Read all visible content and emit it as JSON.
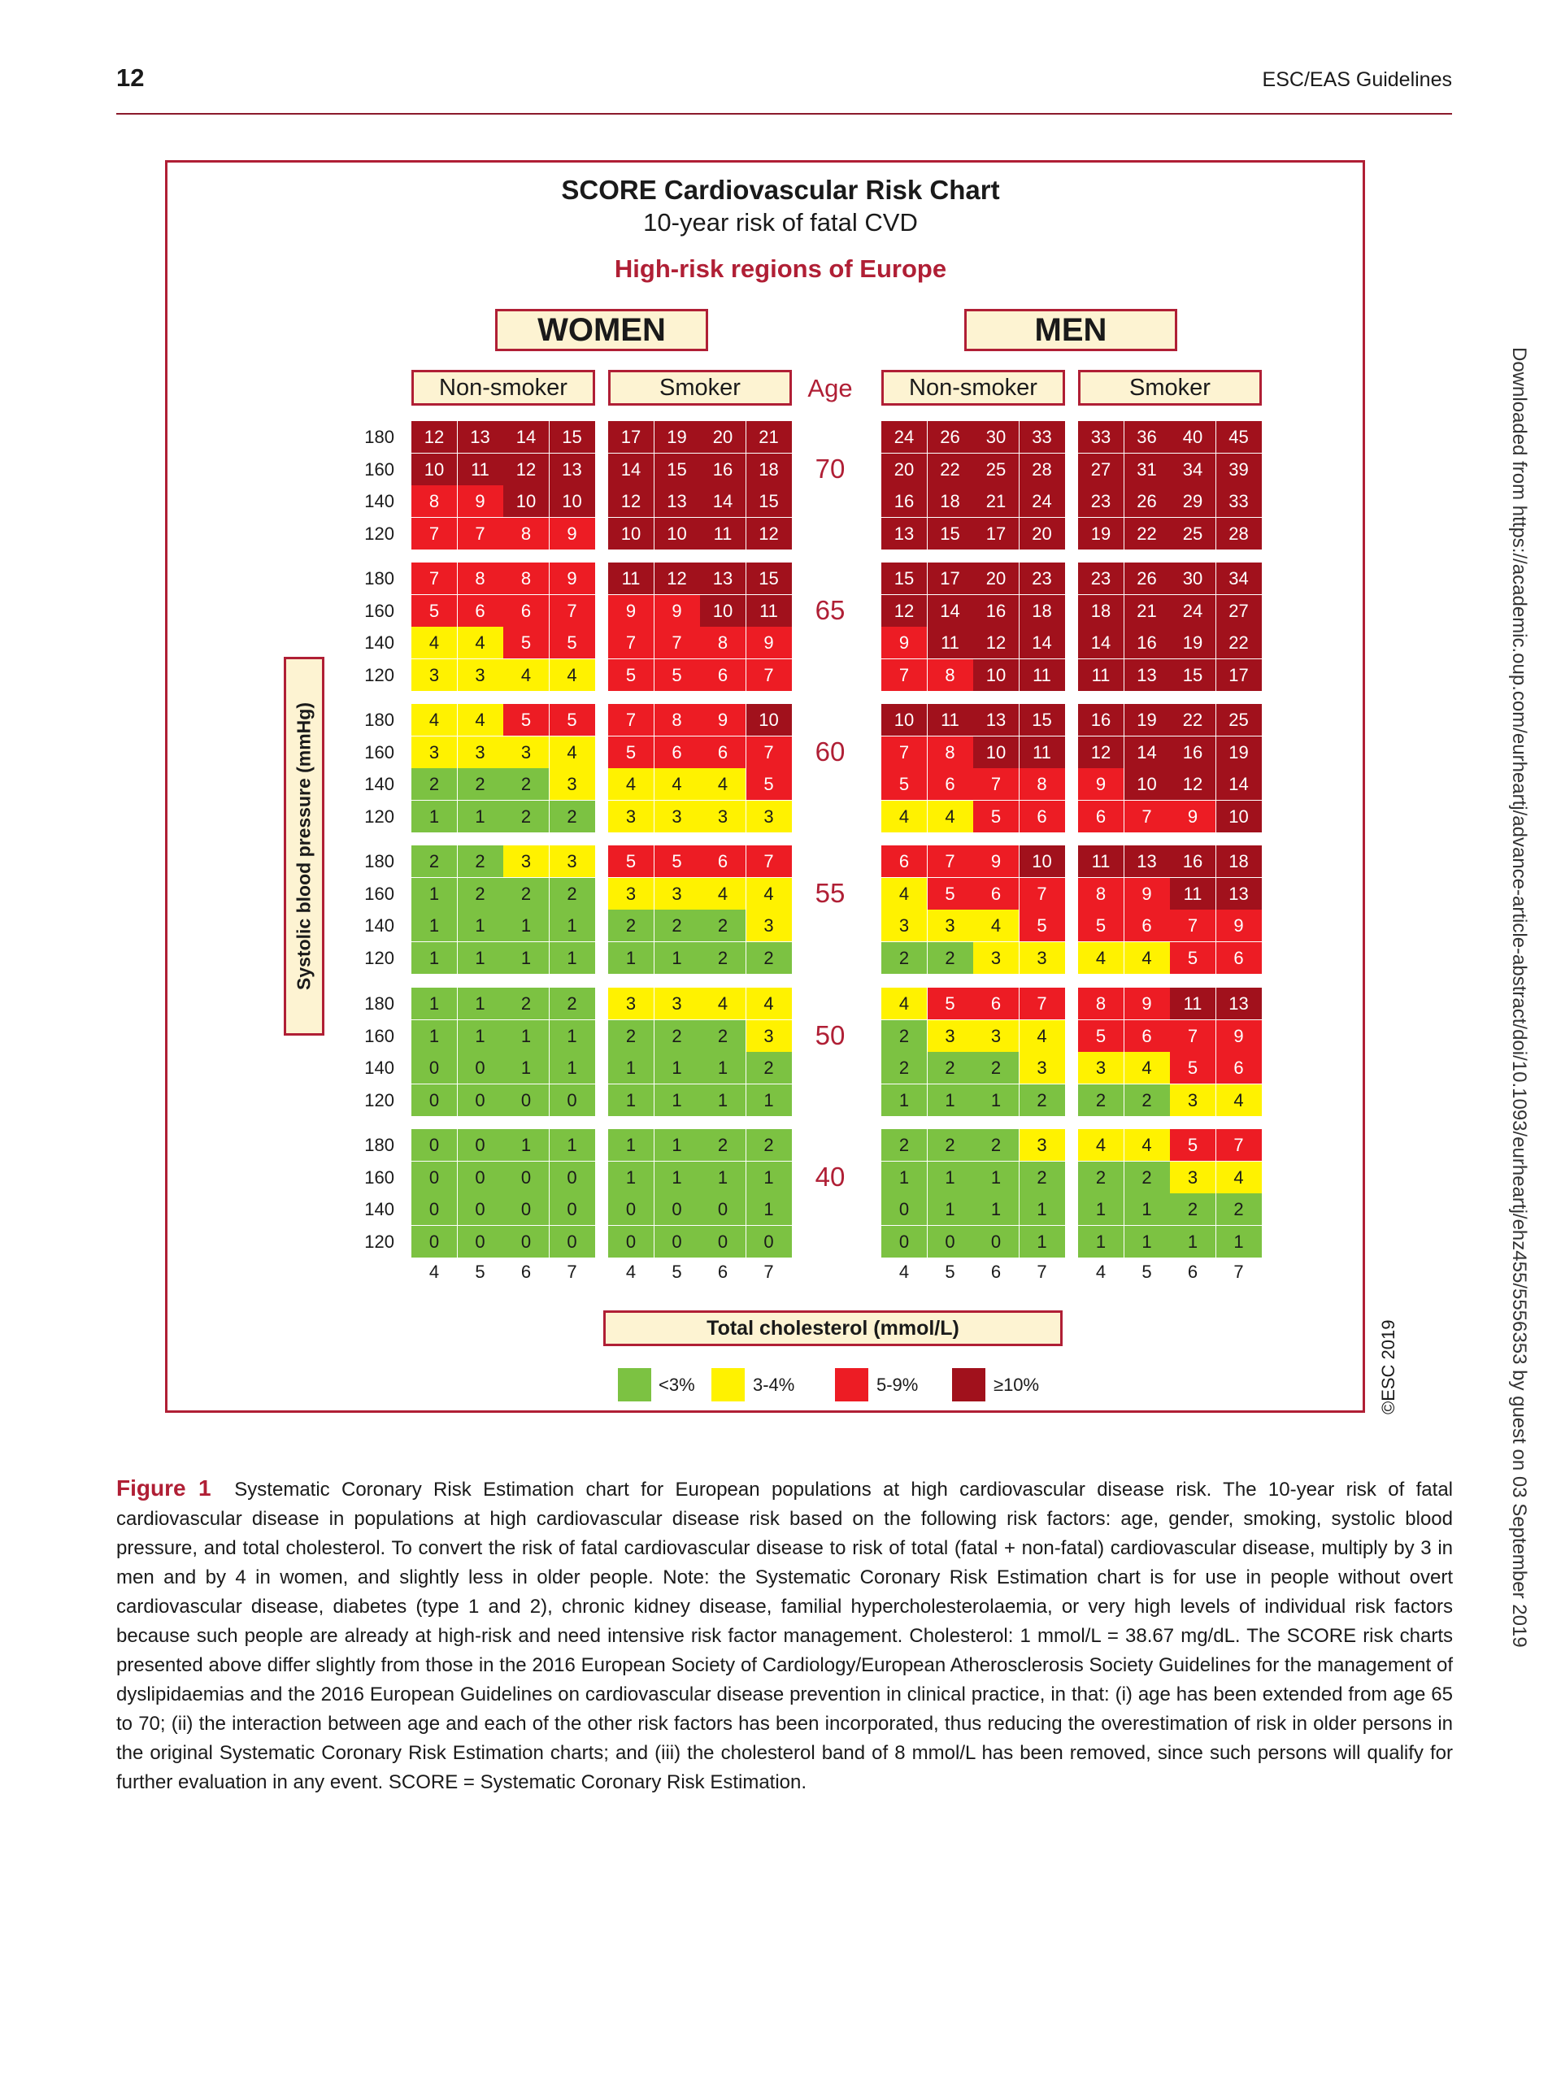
{
  "header": {
    "page_number": "12",
    "running_head": "ESC/EAS Guidelines"
  },
  "side_note": "Downloaded from https://academic.oup.com/eurheartj/advance-article-abstract/doi/10.1093/eurheartj/ehz455/5556353 by guest on 03 September 2019",
  "figure": {
    "title": "SCORE Cardiovascular Risk Chart",
    "subtitle": "10-year risk of fatal CVD",
    "region": "High-risk regions of Europe",
    "women_label": "WOMEN",
    "men_label": "MEN",
    "non_smoker_label": "Non-smoker",
    "smoker_label": "Smoker",
    "age_header": "Age",
    "y_axis_label": "Systolic blood pressure (mmHg)",
    "x_axis_label": "Total cholesterol (mmol/L)",
    "copyright": "©ESC 2019",
    "legend": [
      {
        "label": "<3%",
        "color": "#7cc242"
      },
      {
        "label": "3-4%",
        "color": "#fff200"
      },
      {
        "label": "5-9%",
        "color": "#ed1c24"
      },
      {
        "label": "≥10%",
        "color": "#a1111c"
      }
    ]
  },
  "chart_data": {
    "type": "heatmap",
    "title": "SCORE Cardiovascular Risk Chart",
    "subtitle": "10-year risk of fatal CVD",
    "xlabel": "Total cholesterol (mmol/L)",
    "ylabel": "Systolic blood pressure (mmHg)",
    "cholesterol": [
      "4",
      "5",
      "6",
      "7"
    ],
    "sbp": [
      "180",
      "160",
      "140",
      "120"
    ],
    "ages": [
      "70",
      "65",
      "60",
      "55",
      "50",
      "40"
    ],
    "categories": [
      {
        "key": "women_non_smoker"
      },
      {
        "key": "women_smoker"
      },
      {
        "key": "men_non_smoker"
      },
      {
        "key": "men_smoker"
      }
    ],
    "values": {
      "women_non_smoker": [
        [
          [
            12,
            13,
            14,
            15
          ],
          [
            10,
            11,
            12,
            13
          ],
          [
            8,
            9,
            10,
            10
          ],
          [
            7,
            7,
            8,
            9
          ]
        ],
        [
          [
            7,
            8,
            8,
            9
          ],
          [
            5,
            6,
            6,
            7
          ],
          [
            4,
            4,
            5,
            5
          ],
          [
            3,
            3,
            4,
            4
          ]
        ],
        [
          [
            4,
            4,
            5,
            5
          ],
          [
            3,
            3,
            3,
            4
          ],
          [
            2,
            2,
            2,
            3
          ],
          [
            1,
            1,
            2,
            2
          ]
        ],
        [
          [
            2,
            2,
            3,
            3
          ],
          [
            1,
            2,
            2,
            2
          ],
          [
            1,
            1,
            1,
            1
          ],
          [
            1,
            1,
            1,
            1
          ]
        ],
        [
          [
            1,
            1,
            2,
            2
          ],
          [
            1,
            1,
            1,
            1
          ],
          [
            0,
            0,
            1,
            1
          ],
          [
            0,
            0,
            0,
            0
          ]
        ],
        [
          [
            0,
            0,
            1,
            1
          ],
          [
            0,
            0,
            0,
            0
          ],
          [
            0,
            0,
            0,
            0
          ],
          [
            0,
            0,
            0,
            0
          ]
        ]
      ],
      "women_smoker": [
        [
          [
            17,
            19,
            20,
            21
          ],
          [
            14,
            15,
            16,
            18
          ],
          [
            12,
            13,
            14,
            15
          ],
          [
            10,
            10,
            11,
            12
          ]
        ],
        [
          [
            11,
            12,
            13,
            15
          ],
          [
            9,
            9,
            10,
            11
          ],
          [
            7,
            7,
            8,
            9
          ],
          [
            5,
            5,
            6,
            7
          ]
        ],
        [
          [
            7,
            8,
            9,
            10
          ],
          [
            5,
            6,
            6,
            7
          ],
          [
            4,
            4,
            4,
            5
          ],
          [
            3,
            3,
            3,
            3
          ]
        ],
        [
          [
            5,
            5,
            6,
            7
          ],
          [
            3,
            3,
            4,
            4
          ],
          [
            2,
            2,
            2,
            3
          ],
          [
            1,
            1,
            2,
            2
          ]
        ],
        [
          [
            3,
            3,
            4,
            4
          ],
          [
            2,
            2,
            2,
            3
          ],
          [
            1,
            1,
            1,
            2
          ],
          [
            1,
            1,
            1,
            1
          ]
        ],
        [
          [
            1,
            1,
            2,
            2
          ],
          [
            1,
            1,
            1,
            1
          ],
          [
            0,
            0,
            0,
            1
          ],
          [
            0,
            0,
            0,
            0
          ]
        ]
      ],
      "men_non_smoker": [
        [
          [
            24,
            26,
            30,
            33
          ],
          [
            20,
            22,
            25,
            28
          ],
          [
            16,
            18,
            21,
            24
          ],
          [
            13,
            15,
            17,
            20
          ]
        ],
        [
          [
            15,
            17,
            20,
            23
          ],
          [
            12,
            14,
            16,
            18
          ],
          [
            9,
            11,
            12,
            14
          ],
          [
            7,
            8,
            10,
            11
          ]
        ],
        [
          [
            10,
            11,
            13,
            15
          ],
          [
            7,
            8,
            10,
            11
          ],
          [
            5,
            6,
            7,
            8
          ],
          [
            4,
            4,
            5,
            6
          ]
        ],
        [
          [
            6,
            7,
            9,
            10
          ],
          [
            4,
            5,
            6,
            7
          ],
          [
            3,
            3,
            4,
            5
          ],
          [
            2,
            2,
            3,
            3
          ]
        ],
        [
          [
            4,
            5,
            6,
            7
          ],
          [
            2,
            3,
            3,
            4
          ],
          [
            2,
            2,
            2,
            3
          ],
          [
            1,
            1,
            1,
            2
          ]
        ],
        [
          [
            2,
            2,
            2,
            3
          ],
          [
            1,
            1,
            1,
            2
          ],
          [
            0,
            1,
            1,
            1
          ],
          [
            0,
            0,
            0,
            1
          ]
        ]
      ],
      "men_smoker": [
        [
          [
            33,
            36,
            40,
            45
          ],
          [
            27,
            31,
            34,
            39
          ],
          [
            23,
            26,
            29,
            33
          ],
          [
            19,
            22,
            25,
            28
          ]
        ],
        [
          [
            23,
            26,
            30,
            34
          ],
          [
            18,
            21,
            24,
            27
          ],
          [
            14,
            16,
            19,
            22
          ],
          [
            11,
            13,
            15,
            17
          ]
        ],
        [
          [
            16,
            19,
            22,
            25
          ],
          [
            12,
            14,
            16,
            19
          ],
          [
            9,
            10,
            12,
            14
          ],
          [
            6,
            7,
            9,
            10
          ]
        ],
        [
          [
            11,
            13,
            16,
            18
          ],
          [
            8,
            9,
            11,
            13
          ],
          [
            5,
            6,
            7,
            9
          ],
          [
            4,
            4,
            5,
            6
          ]
        ],
        [
          [
            8,
            9,
            11,
            13
          ],
          [
            5,
            6,
            7,
            9
          ],
          [
            3,
            4,
            5,
            6
          ],
          [
            2,
            2,
            3,
            4
          ]
        ],
        [
          [
            4,
            4,
            5,
            7
          ],
          [
            2,
            2,
            3,
            4
          ],
          [
            1,
            1,
            2,
            2
          ],
          [
            1,
            1,
            1,
            1
          ]
        ]
      ]
    }
  },
  "caption": {
    "label": "Figure 1",
    "text": "Systematic Coronary Risk Estimation chart for European populations at high cardiovascular disease risk. The 10-year risk of fatal cardiovascular disease in populations at high cardiovascular disease risk based on the following risk factors: age, gender, smoking, systolic blood pressure, and total cholesterol. To convert the risk of fatal cardiovascular disease to risk of total (fatal + non-fatal) cardiovascular disease, multiply by 3 in men and by 4 in women, and slightly less in older people. Note: the Systematic Coronary Risk Estimation chart is for use in people without overt cardiovascular disease, diabetes (type 1 and 2), chronic kidney disease, familial hypercholesterolaemia, or very high levels of individual risk factors because such people are already at high-risk and need intensive risk factor management. Cholesterol: 1 mmol/L = 38.67 mg/dL. The SCORE risk charts presented above differ slightly from those in the 2016 European Society of Cardiology/European Atherosclerosis Society Guidelines for the management of dyslipidaemias and the 2016 European Guidelines on cardiovascular disease prevention in clinical practice, in that: (i) age has been extended from age 65 to 70; (ii) the interaction between age and each of the other risk factors has been incorporated, thus reducing the overestimation of risk in older persons in the original Systematic Coronary Risk Estimation charts; and (iii) the cholesterol band of 8 mmol/L has been removed, since such persons will qualify for further evaluation in any event. SCORE = Systematic Coronary Risk Estimation."
  }
}
